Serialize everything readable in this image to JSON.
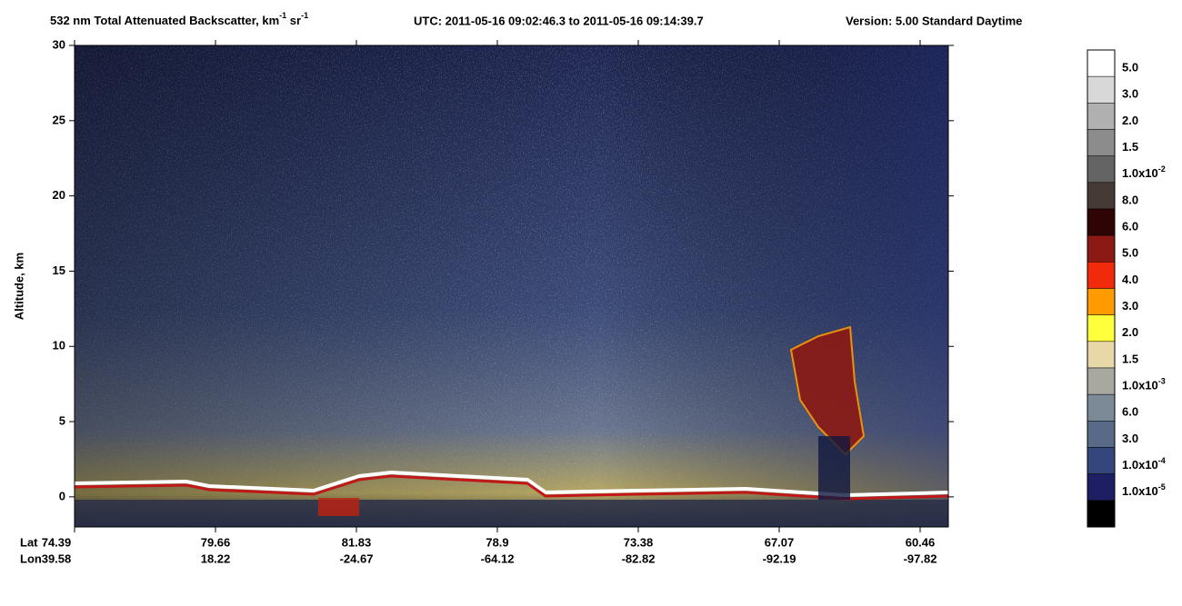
{
  "chart_data": {
    "type": "heatmap",
    "title": [
      {
        "text": "532 nm Total Attenuated Backscatter, km"
      },
      {
        "sup": "-1"
      },
      {
        "text": " sr"
      },
      {
        "sup": "-1"
      }
    ],
    "utc": "UTC:  2011-05-16 09:02:46.3  to  2011-05-16 09:14:39.7",
    "version": "Version: 5.00  Standard  Daytime",
    "ylabel": "Altitude, km",
    "ylim": [
      -2,
      30
    ],
    "yticks": [
      0,
      5,
      10,
      15,
      20,
      25,
      30
    ],
    "x_rows": [
      {
        "name": "Lat",
        "labels": [
          74.39,
          79.66,
          81.83,
          78.9,
          73.38,
          67.07,
          60.46
        ]
      },
      {
        "name": "Lon",
        "labels": [
          39.58,
          18.22,
          -24.67,
          -64.12,
          -82.82,
          -92.19,
          -97.82
        ]
      }
    ],
    "colorbar": {
      "colors": [
        "#ffffff",
        "#d8d8d8",
        "#b0b0b0",
        "#8c8c8c",
        "#646464",
        "#463a36",
        "#2e0404",
        "#8c1a14",
        "#f02a0a",
        "#ff9a00",
        "#ffff3c",
        "#e8d8a8",
        "#a8a8a0",
        "#7c8a98",
        "#586a88",
        "#34467c",
        "#1e1e64",
        "#000000"
      ],
      "labels": [
        {
          "text": "5.0"
        },
        {
          "text": "3.0"
        },
        {
          "text": "2.0"
        },
        {
          "text": "1.5"
        },
        {
          "text": "1.0x10",
          "sup": "-2"
        },
        {
          "text": "8.0"
        },
        {
          "text": "6.0"
        },
        {
          "text": "5.0"
        },
        {
          "text": "4.0"
        },
        {
          "text": "3.0"
        },
        {
          "text": "2.0"
        },
        {
          "text": "1.5"
        },
        {
          "text": "1.0x10",
          "sup": "-3"
        },
        {
          "text": "6.0"
        },
        {
          "text": "3.0"
        },
        {
          "text": "1.0x10",
          "sup": "-4"
        },
        {
          "text": "1.0x10",
          "sup": "-5"
        }
      ]
    }
  }
}
